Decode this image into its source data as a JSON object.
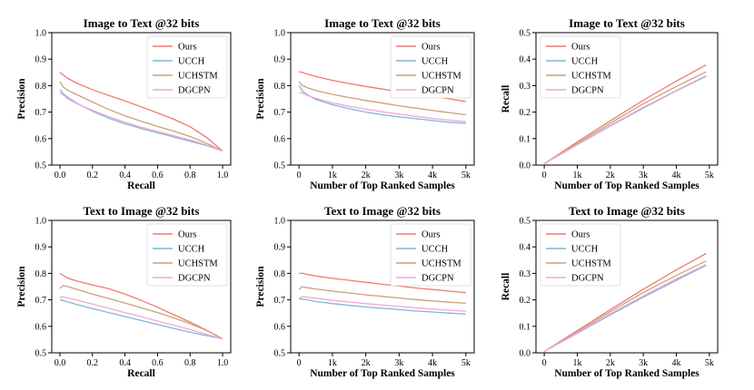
{
  "chart_data": [
    {
      "type": "line",
      "title": "Image to Text @32 bits",
      "xlabel": "Recall",
      "ylabel": "Precision",
      "xlim": [
        -0.05,
        1.05
      ],
      "ylim": [
        0.5,
        1.0
      ],
      "xticks": [
        0.0,
        0.2,
        0.4,
        0.6,
        0.8,
        1.0
      ],
      "xtick_labels": [
        "0.0",
        "0.2",
        "0.4",
        "0.6",
        "0.8",
        "1.0"
      ],
      "yticks": [
        0.5,
        0.6,
        0.7,
        0.8,
        0.9,
        1.0
      ],
      "ytick_labels": [
        "0.5",
        "0.6",
        "0.7",
        "0.8",
        "0.9",
        "1.0"
      ],
      "legend_position": "top-right",
      "x": [
        0.0,
        0.02,
        0.05,
        0.1,
        0.2,
        0.3,
        0.4,
        0.5,
        0.6,
        0.7,
        0.8,
        0.9,
        1.0
      ],
      "series": [
        {
          "name": "Ours",
          "color": "#ee7b6e",
          "values": [
            0.85,
            0.84,
            0.827,
            0.81,
            0.785,
            0.763,
            0.742,
            0.72,
            0.697,
            0.673,
            0.645,
            0.605,
            0.553
          ]
        },
        {
          "name": "UCCH",
          "color": "#7fb6dc",
          "values": [
            0.785,
            0.77,
            0.755,
            0.735,
            0.703,
            0.677,
            0.656,
            0.638,
            0.622,
            0.606,
            0.59,
            0.574,
            0.553
          ]
        },
        {
          "name": "UCHSTM",
          "color": "#c9a27c",
          "values": [
            0.815,
            0.795,
            0.782,
            0.767,
            0.738,
            0.71,
            0.686,
            0.665,
            0.646,
            0.628,
            0.608,
            0.583,
            0.553
          ]
        },
        {
          "name": "DGCPN",
          "color": "#f2a7d6",
          "values": [
            0.772,
            0.765,
            0.75,
            0.733,
            0.707,
            0.683,
            0.662,
            0.643,
            0.627,
            0.611,
            0.595,
            0.576,
            0.553
          ]
        }
      ]
    },
    {
      "type": "line",
      "title": "Image to Text @32 bits",
      "xlabel": "Number of Top Ranked Samples",
      "ylabel": "Precision",
      "xlim": [
        -250,
        5250
      ],
      "ylim": [
        0.5,
        1.0
      ],
      "xticks": [
        0,
        1000,
        2000,
        3000,
        4000,
        5000
      ],
      "xtick_labels": [
        "0",
        "1k",
        "2k",
        "3k",
        "4k",
        "5k"
      ],
      "yticks": [
        0.5,
        0.6,
        0.7,
        0.8,
        0.9,
        1.0
      ],
      "ytick_labels": [
        "0.5",
        "0.6",
        "0.7",
        "0.8",
        "0.9",
        "1.0"
      ],
      "legend_position": "top-right",
      "x": [
        0,
        100,
        250,
        500,
        1000,
        1500,
        2000,
        2500,
        3000,
        3500,
        4000,
        4500,
        5000
      ],
      "series": [
        {
          "name": "Ours",
          "color": "#ee7b6e",
          "values": [
            0.852,
            0.85,
            0.843,
            0.835,
            0.82,
            0.808,
            0.797,
            0.787,
            0.777,
            0.768,
            0.759,
            0.75,
            0.74
          ]
        },
        {
          "name": "UCCH",
          "color": "#7fb6dc",
          "values": [
            0.8,
            0.78,
            0.765,
            0.748,
            0.728,
            0.713,
            0.7,
            0.69,
            0.682,
            0.675,
            0.668,
            0.662,
            0.658
          ]
        },
        {
          "name": "UCHSTM",
          "color": "#c9a27c",
          "values": [
            0.815,
            0.8,
            0.792,
            0.782,
            0.767,
            0.755,
            0.744,
            0.734,
            0.724,
            0.715,
            0.706,
            0.698,
            0.69
          ]
        },
        {
          "name": "DGCPN",
          "color": "#f2a7d6",
          "values": [
            0.775,
            0.772,
            0.763,
            0.752,
            0.735,
            0.722,
            0.711,
            0.701,
            0.692,
            0.684,
            0.676,
            0.67,
            0.664
          ]
        }
      ]
    },
    {
      "type": "line",
      "title": "Image to Text @32 bits",
      "xlabel": "Number of Top Ranked Samples",
      "ylabel": "Recall",
      "xlim": [
        -250,
        5250
      ],
      "ylim": [
        0.0,
        0.5
      ],
      "xticks": [
        0,
        1000,
        2000,
        3000,
        4000,
        5000
      ],
      "xtick_labels": [
        "0",
        "1k",
        "2k",
        "3k",
        "4k",
        "5k"
      ],
      "yticks": [
        0.0,
        0.1,
        0.2,
        0.3,
        0.4,
        0.5
      ],
      "ytick_labels": [
        "0.0",
        "0.1",
        "0.2",
        "0.3",
        "0.4",
        "0.5"
      ],
      "legend_position": "top-left",
      "x": [
        0,
        1000,
        2000,
        3000,
        4000,
        4900
      ],
      "series": [
        {
          "name": "Ours",
          "color": "#ee7b6e",
          "values": [
            0.005,
            0.087,
            0.167,
            0.245,
            0.317,
            0.378
          ]
        },
        {
          "name": "UCCH",
          "color": "#7fb6dc",
          "values": [
            0.005,
            0.077,
            0.148,
            0.215,
            0.28,
            0.335
          ]
        },
        {
          "name": "UCHSTM",
          "color": "#c9a27c",
          "values": [
            0.005,
            0.082,
            0.158,
            0.232,
            0.297,
            0.352
          ]
        },
        {
          "name": "DGCPN",
          "color": "#f2a7d6",
          "values": [
            0.005,
            0.078,
            0.15,
            0.218,
            0.282,
            0.338
          ]
        }
      ]
    },
    {
      "type": "line",
      "title": "Text to Image @32 bits",
      "xlabel": "Recall",
      "ylabel": "Precision",
      "xlim": [
        -0.05,
        1.05
      ],
      "ylim": [
        0.5,
        1.0
      ],
      "xticks": [
        0.0,
        0.2,
        0.4,
        0.6,
        0.8,
        1.0
      ],
      "xtick_labels": [
        "0.0",
        "0.2",
        "0.4",
        "0.6",
        "0.8",
        "1.0"
      ],
      "yticks": [
        0.5,
        0.6,
        0.7,
        0.8,
        0.9,
        1.0
      ],
      "ytick_labels": [
        "0.5",
        "0.6",
        "0.7",
        "0.8",
        "0.9",
        "1.0"
      ],
      "legend_position": "top-right",
      "x": [
        0.0,
        0.02,
        0.05,
        0.1,
        0.2,
        0.3,
        0.4,
        0.5,
        0.6,
        0.7,
        0.8,
        0.9,
        1.0
      ],
      "series": [
        {
          "name": "Ours",
          "color": "#ee7b6e",
          "values": [
            0.8,
            0.792,
            0.782,
            0.772,
            0.756,
            0.742,
            0.722,
            0.698,
            0.672,
            0.644,
            0.616,
            0.586,
            0.553
          ]
        },
        {
          "name": "UCCH",
          "color": "#7fb6dc",
          "values": [
            0.702,
            0.697,
            0.692,
            0.683,
            0.667,
            0.652,
            0.637,
            0.622,
            0.607,
            0.592,
            0.578,
            0.565,
            0.553
          ]
        },
        {
          "name": "UCHSTM",
          "color": "#c9a27c",
          "values": [
            0.743,
            0.754,
            0.75,
            0.74,
            0.722,
            0.705,
            0.688,
            0.67,
            0.652,
            0.632,
            0.61,
            0.585,
            0.553
          ]
        },
        {
          "name": "DGCPN",
          "color": "#f2a7d6",
          "values": [
            0.71,
            0.712,
            0.707,
            0.7,
            0.684,
            0.668,
            0.652,
            0.636,
            0.62,
            0.604,
            0.588,
            0.57,
            0.553
          ]
        }
      ]
    },
    {
      "type": "line",
      "title": "Text to Image @32 bits",
      "xlabel": "Number of Top Ranked Samples",
      "ylabel": "Precision",
      "xlim": [
        -250,
        5250
      ],
      "ylim": [
        0.5,
        1.0
      ],
      "xticks": [
        0,
        1000,
        2000,
        3000,
        4000,
        5000
      ],
      "xtick_labels": [
        "0",
        "1k",
        "2k",
        "3k",
        "4k",
        "5k"
      ],
      "yticks": [
        0.5,
        0.6,
        0.7,
        0.8,
        0.9,
        1.0
      ],
      "ytick_labels": [
        "0.5",
        "0.6",
        "0.7",
        "0.8",
        "0.9",
        "1.0"
      ],
      "legend_position": "top-right",
      "x": [
        0,
        100,
        250,
        500,
        1000,
        1500,
        2000,
        2500,
        3000,
        3500,
        4000,
        4500,
        5000
      ],
      "series": [
        {
          "name": "Ours",
          "color": "#ee7b6e",
          "values": [
            0.8,
            0.8,
            0.796,
            0.79,
            0.781,
            0.774,
            0.766,
            0.759,
            0.752,
            0.745,
            0.739,
            0.733,
            0.727
          ]
        },
        {
          "name": "UCCH",
          "color": "#7fb6dc",
          "values": [
            0.703,
            0.703,
            0.7,
            0.694,
            0.686,
            0.679,
            0.673,
            0.668,
            0.663,
            0.658,
            0.654,
            0.65,
            0.646
          ]
        },
        {
          "name": "UCHSTM",
          "color": "#c9a27c",
          "values": [
            0.74,
            0.75,
            0.746,
            0.741,
            0.733,
            0.726,
            0.719,
            0.713,
            0.707,
            0.701,
            0.696,
            0.691,
            0.687
          ]
        },
        {
          "name": "DGCPN",
          "color": "#f2a7d6",
          "values": [
            0.706,
            0.712,
            0.71,
            0.706,
            0.698,
            0.692,
            0.686,
            0.68,
            0.675,
            0.67,
            0.665,
            0.661,
            0.657
          ]
        }
      ]
    },
    {
      "type": "line",
      "title": "Text to Image @32 bits",
      "xlabel": "Number of Top Ranked Samples",
      "ylabel": "Recall",
      "xlim": [
        -250,
        5250
      ],
      "ylim": [
        0.0,
        0.5
      ],
      "xticks": [
        0,
        1000,
        2000,
        3000,
        4000,
        5000
      ],
      "xtick_labels": [
        "0",
        "1k",
        "2k",
        "3k",
        "4k",
        "5k"
      ],
      "yticks": [
        0.0,
        0.1,
        0.2,
        0.3,
        0.4,
        0.5
      ],
      "ytick_labels": [
        "0.0",
        "0.1",
        "0.2",
        "0.3",
        "0.4",
        "0.5"
      ],
      "legend_position": "top-left",
      "x": [
        0,
        1000,
        2000,
        3000,
        4000,
        4900
      ],
      "series": [
        {
          "name": "Ours",
          "color": "#ee7b6e",
          "values": [
            0.005,
            0.084,
            0.163,
            0.24,
            0.313,
            0.375
          ]
        },
        {
          "name": "UCCH",
          "color": "#7fb6dc",
          "values": [
            0.005,
            0.074,
            0.143,
            0.21,
            0.274,
            0.33
          ]
        },
        {
          "name": "UCHSTM",
          "color": "#c9a27c",
          "values": [
            0.005,
            0.079,
            0.155,
            0.228,
            0.292,
            0.347
          ]
        },
        {
          "name": "DGCPN",
          "color": "#f2a7d6",
          "values": [
            0.005,
            0.076,
            0.147,
            0.215,
            0.279,
            0.334
          ]
        }
      ]
    }
  ]
}
